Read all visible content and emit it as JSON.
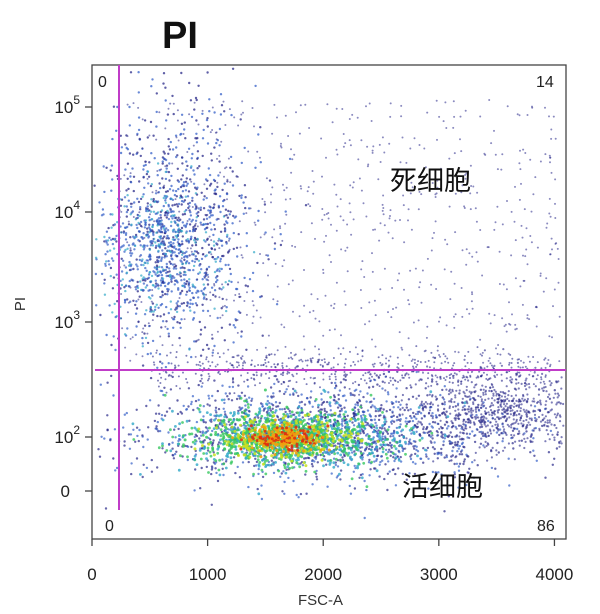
{
  "chart_data": {
    "type": "scatter",
    "title": "PI",
    "xlabel": "FSC-A",
    "ylabel": "PI",
    "x_ticks": [
      "0",
      "1000",
      "2000",
      "3000",
      "4000"
    ],
    "y_ticks": [
      {
        "base": "10",
        "exp": "5"
      },
      {
        "base": "10",
        "exp": "4"
      },
      {
        "base": "10",
        "exp": "3"
      },
      {
        "base": "10",
        "exp": "2"
      },
      {
        "base": "0",
        "exp": ""
      }
    ],
    "xlim": [
      0,
      4100
    ],
    "y_scale": "biexponential",
    "gate": {
      "x": 230,
      "y": 400
    },
    "quadrants": {
      "upper_left": "0",
      "upper_right": "14",
      "lower_left": "0",
      "lower_right": "86"
    },
    "regions": {
      "dead_cells": "死细胞",
      "live_cells": "活细胞"
    },
    "populations": [
      {
        "label": "活细胞",
        "percent": 86,
        "center": [
          1700,
          100
        ]
      },
      {
        "label": "死细胞",
        "percent": 14,
        "center": [
          900,
          5000
        ]
      }
    ],
    "colors": {
      "gate_line": "#c03cc8",
      "density": [
        "#2a2a8a",
        "#3560c8",
        "#2fa8c8",
        "#38c860",
        "#c8e020",
        "#f0a010",
        "#e03010"
      ]
    }
  }
}
